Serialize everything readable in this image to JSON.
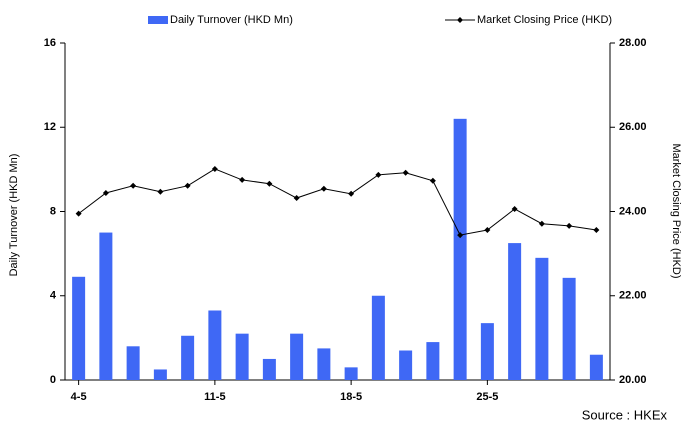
{
  "chart_data": {
    "type": "bar_line",
    "categories": [
      "4-5",
      null,
      null,
      null,
      null,
      "11-5",
      null,
      null,
      null,
      null,
      "18-5",
      null,
      null,
      null,
      null,
      "25-5",
      null,
      null,
      null,
      null
    ],
    "series": [
      {
        "name": "Daily Turnover (HKD Mn)",
        "color": "#3f68f5",
        "type": "bar",
        "values": [
          4.9,
          7.0,
          1.6,
          0.5,
          2.1,
          3.3,
          2.2,
          1.0,
          2.2,
          1.5,
          0.6,
          4.0,
          1.4,
          1.8,
          12.4,
          2.7,
          6.5,
          5.8,
          4.85,
          1.2
        ]
      },
      {
        "name": "Market Closing Price (HKD)",
        "color": "#000000",
        "type": "line",
        "axis": "y2",
        "values": [
          23.95,
          24.44,
          24.61,
          24.47,
          24.61,
          25.01,
          24.75,
          24.66,
          24.32,
          24.54,
          24.42,
          24.87,
          24.92,
          24.73,
          23.44,
          23.56,
          24.06,
          23.71,
          23.66,
          23.56
        ]
      }
    ],
    "y_label": "Daily Turnover (HKD Mn)",
    "y2_label": "Market Closing Price (HKD)",
    "ylim": [
      0,
      16
    ],
    "yticks": [
      0,
      4,
      8,
      12,
      16
    ],
    "y2lim": [
      20,
      28
    ],
    "y2ticks": [
      {
        "value": 20,
        "label": "20.00"
      },
      {
        "value": 22,
        "label": "22.00"
      },
      {
        "value": 24,
        "label": "24.00"
      },
      {
        "value": 26,
        "label": "26.00"
      },
      {
        "value": 28,
        "label": "28.00"
      }
    ],
    "source": "Source : HKEx",
    "legend": "top"
  }
}
